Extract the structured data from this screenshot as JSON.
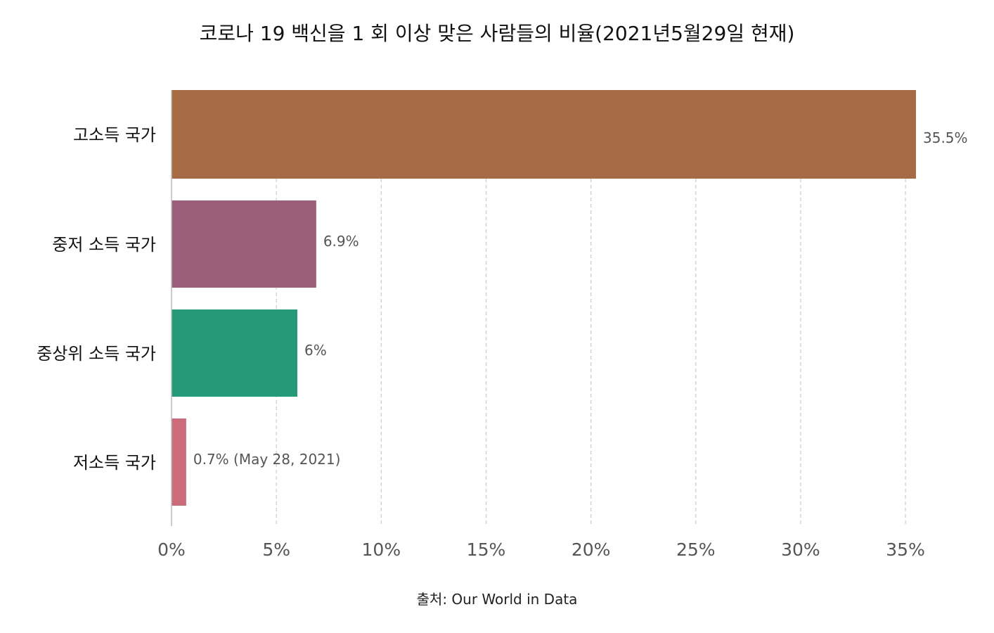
{
  "chart_data": {
    "type": "bar",
    "orientation": "horizontal",
    "title": "코로나 19 백신을 1 회 이상 맞은 사람들의 비율(2021년5월29일 현재)",
    "categories": [
      "고소득 국가",
      "중저 소득 국가",
      "중상위 소득 국가",
      "저소득 국가"
    ],
    "values": [
      35.5,
      6.9,
      6.0,
      0.7
    ],
    "data_labels": [
      "35.5%",
      "6.9%",
      "6%",
      "0.7% (May 28, 2021)"
    ],
    "colors": [
      "#a66b45",
      "#9c5f7b",
      "#259a78",
      "#cc6c7a"
    ],
    "xlim": [
      0,
      35.5
    ],
    "xticks": [
      0,
      5,
      10,
      15,
      20,
      25,
      30,
      35
    ],
    "xtick_labels": [
      "0%",
      "5%",
      "10%",
      "15%",
      "20%",
      "25%",
      "30%",
      "35%"
    ],
    "grid": "vertical dashed",
    "legend": "none",
    "source": "출처: Our World in Data"
  }
}
